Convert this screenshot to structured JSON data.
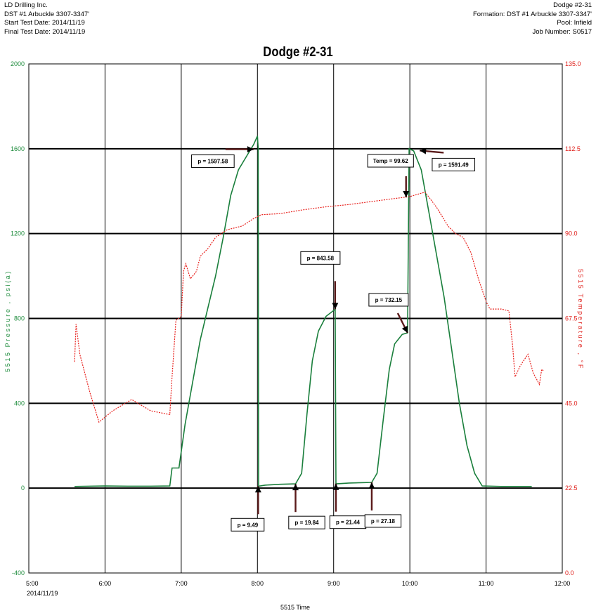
{
  "header": {
    "left": [
      "LD Drilling Inc.",
      "DST #1   Arbuckle   3307-3347'",
      "Start Test Date: 2014/11/19",
      "Final Test Date: 2014/11/19"
    ],
    "right": [
      "Dodge #2-31",
      "Formation: DST #1   Arbuckle   3307-3347'",
      "Pool: Infield",
      "Job Number: S0517"
    ]
  },
  "chart_data": {
    "type": "line",
    "title": "Dodge #2-31",
    "xlabel": "5515 Time",
    "x_date_label": "2014/11/19",
    "ylabel_left": "5515 Pressure , psi(a)",
    "ylabel_right": "5515 Temperature , °F",
    "x_ticks": [
      "5:00",
      "6:00",
      "7:00",
      "8:00",
      "9:00",
      "10:00",
      "11:00",
      "12:00"
    ],
    "x_range_hours": [
      5,
      12
    ],
    "y_left_ticks": [
      2000,
      1600,
      1200,
      800,
      400,
      0,
      -400
    ],
    "y_left_range": [
      -400,
      2000
    ],
    "y_right_ticks": [
      "135.0",
      "112.5",
      "90.0",
      "67.5",
      "45.0",
      "22.5",
      "0.0"
    ],
    "y_right_range": [
      0,
      135
    ],
    "grid": true,
    "colors": {
      "pressure": "#1a7f3c",
      "temperature": "#e8231f",
      "left_axis": "#1b8a3a",
      "right_axis": "#e0201b",
      "arrow": "#5a1a1a"
    },
    "series": [
      {
        "name": "5515 Pressure",
        "axis": "left",
        "points": [
          [
            5.6,
            8
          ],
          [
            6.0,
            10
          ],
          [
            6.3,
            9
          ],
          [
            6.6,
            9
          ],
          [
            6.85,
            10
          ],
          [
            6.88,
            95
          ],
          [
            6.97,
            95
          ],
          [
            7.05,
            300
          ],
          [
            7.15,
            500
          ],
          [
            7.25,
            700
          ],
          [
            7.35,
            850
          ],
          [
            7.45,
            1000
          ],
          [
            7.55,
            1180
          ],
          [
            7.65,
            1380
          ],
          [
            7.75,
            1500
          ],
          [
            7.85,
            1560
          ],
          [
            7.95,
            1620
          ],
          [
            8.0,
            1660
          ],
          [
            8.01,
            1600
          ],
          [
            8.015,
            9
          ],
          [
            8.1,
            14
          ],
          [
            8.3,
            18
          ],
          [
            8.5,
            20
          ],
          [
            8.58,
            70
          ],
          [
            8.65,
            350
          ],
          [
            8.72,
            600
          ],
          [
            8.8,
            740
          ],
          [
            8.9,
            810
          ],
          [
            9.02,
            843
          ],
          [
            9.03,
            20
          ],
          [
            9.2,
            24
          ],
          [
            9.4,
            26
          ],
          [
            9.5,
            27
          ],
          [
            9.57,
            70
          ],
          [
            9.65,
            320
          ],
          [
            9.73,
            560
          ],
          [
            9.8,
            680
          ],
          [
            9.9,
            725
          ],
          [
            9.97,
            732
          ],
          [
            9.99,
            1600
          ],
          [
            10.05,
            1590
          ],
          [
            10.15,
            1500
          ],
          [
            10.25,
            1300
          ],
          [
            10.35,
            1100
          ],
          [
            10.45,
            900
          ],
          [
            10.55,
            650
          ],
          [
            10.65,
            400
          ],
          [
            10.75,
            200
          ],
          [
            10.85,
            70
          ],
          [
            10.95,
            10
          ],
          [
            11.2,
            8
          ],
          [
            11.6,
            8
          ]
        ]
      },
      {
        "name": "5515 Temperature",
        "axis": "right",
        "points": [
          [
            5.6,
            56
          ],
          [
            5.62,
            66
          ],
          [
            5.67,
            58
          ],
          [
            5.8,
            48
          ],
          [
            5.92,
            40
          ],
          [
            6.1,
            43
          ],
          [
            6.35,
            46
          ],
          [
            6.6,
            43
          ],
          [
            6.85,
            42
          ],
          [
            6.88,
            52
          ],
          [
            6.93,
            67
          ],
          [
            7.0,
            68
          ],
          [
            7.03,
            80
          ],
          [
            7.06,
            82
          ],
          [
            7.12,
            78
          ],
          [
            7.2,
            80
          ],
          [
            7.25,
            84
          ],
          [
            7.35,
            86
          ],
          [
            7.45,
            89
          ],
          [
            7.6,
            91
          ],
          [
            7.8,
            92
          ],
          [
            7.95,
            94
          ],
          [
            8.05,
            95
          ],
          [
            8.3,
            95.3
          ],
          [
            8.6,
            96.3
          ],
          [
            8.9,
            97.1
          ],
          [
            9.2,
            97.7
          ],
          [
            9.5,
            98.5
          ],
          [
            9.8,
            99.3
          ],
          [
            10.0,
            99.8
          ],
          [
            10.2,
            101
          ],
          [
            10.35,
            97
          ],
          [
            10.5,
            92
          ],
          [
            10.6,
            90
          ],
          [
            10.7,
            89
          ],
          [
            10.8,
            85
          ],
          [
            10.9,
            78
          ],
          [
            11.0,
            72
          ],
          [
            11.05,
            70
          ],
          [
            11.2,
            70
          ],
          [
            11.3,
            69.5
          ],
          [
            11.35,
            60
          ],
          [
            11.38,
            52
          ],
          [
            11.45,
            55
          ],
          [
            11.55,
            58
          ],
          [
            11.62,
            53
          ],
          [
            11.7,
            50
          ],
          [
            11.73,
            54
          ],
          [
            11.76,
            53.5
          ]
        ]
      }
    ],
    "annotations": [
      {
        "label": "p = 1597.58",
        "x": 7.95,
        "y": 1597.58
      },
      {
        "label": "p = 9.49",
        "x": 8.01,
        "y": 9.49
      },
      {
        "label": "p = 19.84",
        "x": 8.5,
        "y": 19.84
      },
      {
        "label": "p = 843.58",
        "x": 9.02,
        "y": 843.58
      },
      {
        "label": "p = 21.44",
        "x": 9.03,
        "y": 21.44
      },
      {
        "label": "p = 27.18",
        "x": 9.5,
        "y": 27.18
      },
      {
        "label": "p = 732.15",
        "x": 9.97,
        "y": 732.15
      },
      {
        "label": "Temp = 99.62",
        "x": 9.95,
        "y_temp": 99.62
      },
      {
        "label": "p = 1591.49",
        "x": 10.13,
        "y": 1591.49
      }
    ]
  }
}
